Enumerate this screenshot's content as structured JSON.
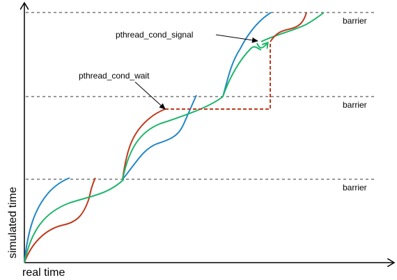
{
  "axes": {
    "x_label": "real time",
    "y_label": "simulated time"
  },
  "barriers": [
    {
      "label": "barrier"
    },
    {
      "label": "barrier"
    },
    {
      "label": "barrier"
    }
  ],
  "annotations": {
    "wait": "pthread_cond_wait",
    "signal": "pthread_cond_signal"
  },
  "colors": {
    "red_thread": "#C0391B",
    "blue_thread": "#1F86C8",
    "green_thread": "#1DB56A",
    "wait_dashed": "#C0391B",
    "axis": "#000000",
    "barrier_line": "#333333"
  }
}
